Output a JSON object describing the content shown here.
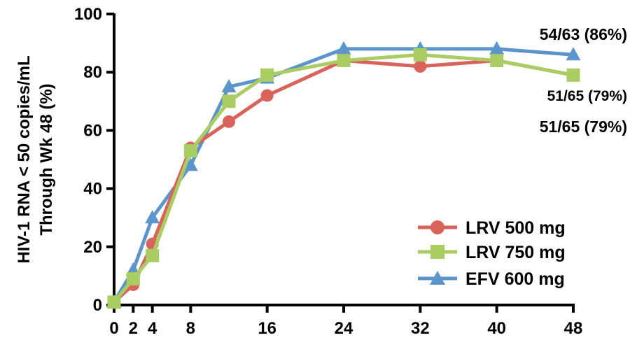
{
  "chart_data": {
    "type": "line",
    "ylabel_line1": "HIV-1 RNA < 50 copies/mL",
    "ylabel_line2": "Through Wk 48 (%)",
    "xlabel": "",
    "xlim": [
      0,
      48
    ],
    "ylim": [
      0,
      100
    ],
    "x_ticks": [
      0,
      2,
      4,
      8,
      16,
      24,
      32,
      40,
      48
    ],
    "y_ticks": [
      0,
      20,
      40,
      60,
      80,
      100
    ],
    "grid": false,
    "legend_position": "bottom-right",
    "series": [
      {
        "name": "LRV 500 mg",
        "color": "#d9625a",
        "marker": "circle",
        "x": [
          0,
          2,
          4,
          8,
          12,
          16,
          24,
          32,
          40,
          48
        ],
        "y": [
          1,
          7,
          21,
          54,
          63,
          72,
          84,
          82,
          84,
          79
        ]
      },
      {
        "name": "LRV 750 mg",
        "color": "#a9cc63",
        "marker": "square",
        "x": [
          0,
          2,
          4,
          8,
          12,
          16,
          24,
          32,
          40,
          48
        ],
        "y": [
          1,
          9,
          17,
          53,
          70,
          79,
          84,
          86,
          84,
          79
        ]
      },
      {
        "name": "EFV 600 mg",
        "color": "#5b95cc",
        "marker": "triangle",
        "x": [
          0,
          2,
          4,
          8,
          12,
          16,
          24,
          32,
          40,
          48
        ],
        "y": [
          1,
          12,
          30,
          48,
          75,
          78,
          88,
          88,
          88,
          86
        ]
      }
    ],
    "annotations": [
      {
        "text": "54/63 (86%)"
      },
      {
        "text": "51/65 (79%)"
      },
      {
        "text": "51/65 (79%)"
      }
    ]
  }
}
